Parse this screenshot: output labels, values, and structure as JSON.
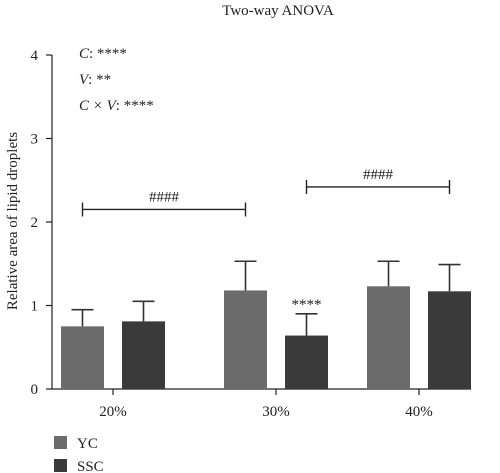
{
  "chart_data": {
    "type": "bar",
    "title": "Two-way ANOVA",
    "xlabel": "",
    "ylabel": "Relative area of lipid droplets",
    "ylim": [
      0,
      4
    ],
    "yticks": [
      "0",
      "1",
      "2",
      "3",
      "4"
    ],
    "categories": [
      "20%",
      "30%",
      "40%"
    ],
    "series": [
      {
        "name": "YC",
        "color": "#6b6b6b",
        "values": [
          0.75,
          1.18,
          1.23
        ],
        "errors": [
          0.2,
          0.35,
          0.3
        ],
        "sig": [
          "",
          "",
          ""
        ]
      },
      {
        "name": "SSC",
        "color": "#3a3a3a",
        "values": [
          0.81,
          0.64,
          1.17
        ],
        "errors": [
          0.24,
          0.26,
          0.32
        ],
        "sig": [
          "",
          "****",
          ""
        ]
      }
    ],
    "anova": [
      {
        "factor": "C",
        "stars": ": ****"
      },
      {
        "factor": "V",
        "stars": ": **"
      },
      {
        "factor": "C × V",
        "stars": ": ****"
      }
    ],
    "brackets": [
      {
        "label": "####",
        "category": "20%",
        "y": 2.15
      },
      {
        "label": "####",
        "category": "30%-40%",
        "y": 2.42
      }
    ],
    "legend_position": "bottom-left"
  }
}
